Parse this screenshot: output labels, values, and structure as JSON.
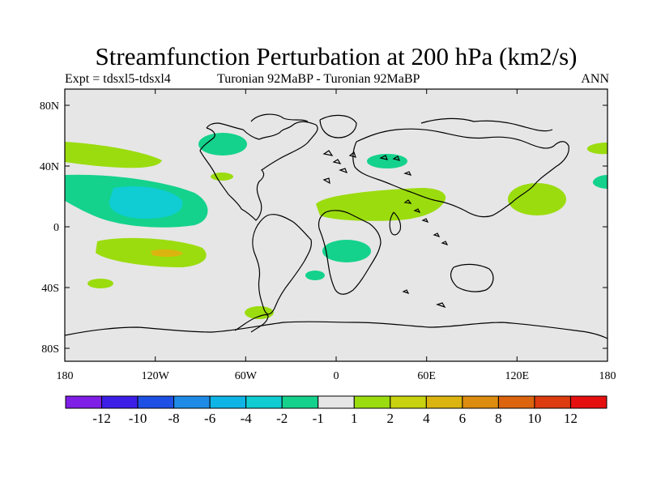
{
  "title": "Streamfunction Perturbation at 200 hPa (km2/s)",
  "subtitle": {
    "left": "Expt = tdsxl5-tdsxl4",
    "center": "Turonian  92MaBP - Turonian  92MaBP",
    "right": "ANN"
  },
  "axes": {
    "y_ticks": [
      "80N",
      "40N",
      "0",
      "40S",
      "80S"
    ],
    "x_ticks": [
      "180",
      "120W",
      "60W",
      "0",
      "60E",
      "120E",
      "180"
    ]
  },
  "colorbar": {
    "labels": [
      "-12",
      "-10",
      "-8",
      "-6",
      "-4",
      "-2",
      "-1",
      "1",
      "2",
      "4",
      "6",
      "8",
      "10",
      "12"
    ],
    "colors": [
      "#7f1ee6",
      "#3c1ee6",
      "#1e50e6",
      "#1e8ce6",
      "#0fb4e6",
      "#0fcdd2",
      "#14d28c",
      "#e6e6e6",
      "#9bdc0f",
      "#c8d20f",
      "#dcb40f",
      "#dc8c0f",
      "#dc640f",
      "#dc3c0f",
      "#e60f0f"
    ]
  },
  "map_colors": {
    "background": "#e6e6e6",
    "neg_small": "#14d28c",
    "neg_mid": "#0fcdd2",
    "pos_small": "#9bdc0f",
    "pos_mid": "#dcb40f"
  }
}
